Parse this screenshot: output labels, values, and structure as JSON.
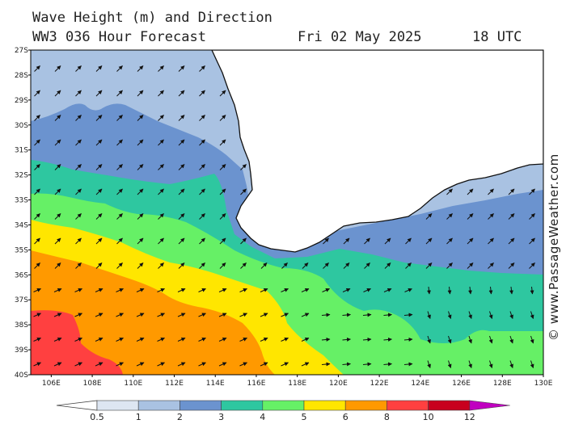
{
  "header": {
    "title_line1": "Wave Height (m) and Direction",
    "title_line2": "WW3 036 Hour Forecast",
    "date": "Fri 02 May 2025",
    "time": "18 UTC"
  },
  "copyright": "© www.PassageWeather.com",
  "map": {
    "lat_labels": [
      "27S",
      "28S",
      "29S",
      "30S",
      "31S",
      "32S",
      "33S",
      "34S",
      "35S",
      "36S",
      "37S",
      "38S",
      "39S",
      "40S"
    ],
    "lon_labels": [
      "106E",
      "108E",
      "110E",
      "112E",
      "114E",
      "116E",
      "118E",
      "120E",
      "122E",
      "124E",
      "126E",
      "128E",
      "130E"
    ],
    "lat_range": [
      -27,
      -40
    ],
    "lon_range": [
      105,
      130
    ],
    "land_color": "#ffffff",
    "arrow_color": "#111111"
  },
  "colorbar": {
    "labels": [
      "0.5",
      "1",
      "2",
      "3",
      "4",
      "5",
      "6",
      "8",
      "10",
      "12"
    ],
    "colors": [
      "#dde6f2",
      "#a9c2e2",
      "#6b93cf",
      "#2ec7a0",
      "#66f066",
      "#ffe600",
      "#ff9900",
      "#ff4040",
      "#c8001e",
      "#c000c0"
    ]
  }
}
